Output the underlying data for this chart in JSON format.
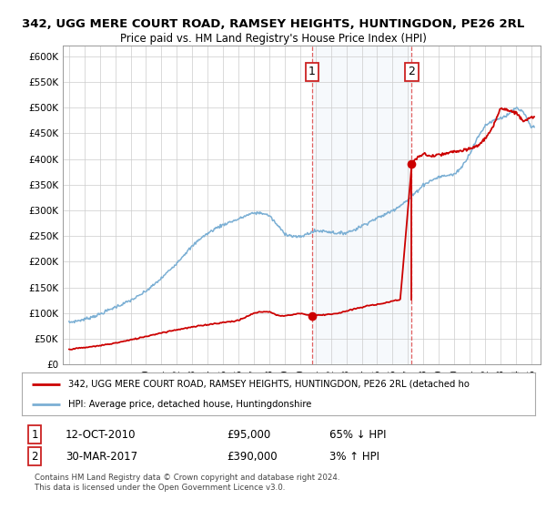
{
  "title1": "342, UGG MERE COURT ROAD, RAMSEY HEIGHTS, HUNTINGDON, PE26 2RL",
  "title2": "Price paid vs. HM Land Registry's House Price Index (HPI)",
  "ylim": [
    0,
    620000
  ],
  "yticks": [
    0,
    50000,
    100000,
    150000,
    200000,
    250000,
    300000,
    350000,
    400000,
    450000,
    500000,
    550000,
    600000
  ],
  "ytick_labels": [
    "£0",
    "£50K",
    "£100K",
    "£150K",
    "£200K",
    "£250K",
    "£300K",
    "£350K",
    "£400K",
    "£450K",
    "£500K",
    "£550K",
    "£600K"
  ],
  "sale1_date": 2010.78,
  "sale1_price": 95000,
  "sale2_date": 2017.24,
  "sale2_price": 390000,
  "legend_red_label": "342, UGG MERE COURT ROAD, RAMSEY HEIGHTS, HUNTINGDON, PE26 2RL (detached ho",
  "legend_blue_label": "HPI: Average price, detached house, Huntingdonshire",
  "footer": "Contains HM Land Registry data © Crown copyright and database right 2024.\nThis data is licensed under the Open Government Licence v3.0.",
  "hpi_color": "#7bafd4",
  "price_color": "#cc0000",
  "shade_color": "#dce8f5",
  "bg_color": "#ffffff",
  "grid_color": "#cccccc",
  "hpi_kp_years": [
    1995.0,
    1995.5,
    1996.0,
    1996.5,
    1997.0,
    1997.5,
    1998.0,
    1998.5,
    1999.0,
    1999.5,
    2000.0,
    2000.5,
    2001.0,
    2001.5,
    2002.0,
    2002.5,
    2003.0,
    2003.5,
    2004.0,
    2004.5,
    2005.0,
    2005.5,
    2006.0,
    2006.5,
    2007.0,
    2007.5,
    2008.0,
    2008.5,
    2009.0,
    2009.5,
    2010.0,
    2010.5,
    2011.0,
    2011.5,
    2012.0,
    2012.5,
    2013.0,
    2013.5,
    2014.0,
    2014.5,
    2015.0,
    2015.5,
    2016.0,
    2016.5,
    2017.0,
    2017.5,
    2018.0,
    2018.5,
    2019.0,
    2019.5,
    2020.0,
    2020.5,
    2021.0,
    2021.5,
    2022.0,
    2022.5,
    2023.0,
    2023.5,
    2024.0,
    2024.5,
    2025.0
  ],
  "hpi_kp_vals": [
    82000,
    85000,
    88000,
    93000,
    98000,
    105000,
    112000,
    118000,
    125000,
    133000,
    143000,
    155000,
    168000,
    183000,
    198000,
    215000,
    230000,
    245000,
    255000,
    265000,
    272000,
    278000,
    283000,
    290000,
    295000,
    295000,
    290000,
    272000,
    255000,
    250000,
    248000,
    255000,
    260000,
    260000,
    258000,
    255000,
    257000,
    262000,
    270000,
    278000,
    285000,
    292000,
    300000,
    310000,
    320000,
    335000,
    350000,
    358000,
    365000,
    368000,
    370000,
    385000,
    410000,
    440000,
    465000,
    475000,
    480000,
    485000,
    500000,
    490000,
    462000
  ],
  "red_kp_years": [
    1995.0,
    1996.0,
    1997.0,
    1998.0,
    1999.0,
    2000.0,
    2001.0,
    2002.0,
    2003.0,
    2004.0,
    2005.0,
    2006.0,
    2007.0,
    2007.5,
    2008.0,
    2008.5,
    2009.0,
    2009.5,
    2010.0,
    2010.78,
    2011.5,
    2012.5,
    2013.5,
    2014.5,
    2015.5,
    2016.5,
    2017.24,
    2017.5,
    2018.0,
    2018.5,
    2019.0,
    2019.5,
    2020.0,
    2020.5,
    2021.0,
    2021.5,
    2022.0,
    2022.5,
    2023.0,
    2023.5,
    2024.0,
    2024.5,
    2025.0
  ],
  "red_kp_vals": [
    30000,
    33000,
    37000,
    42000,
    48000,
    55000,
    62000,
    68000,
    73000,
    78000,
    82000,
    86000,
    100000,
    103000,
    103000,
    96000,
    95000,
    97000,
    100000,
    95000,
    97000,
    100000,
    108000,
    115000,
    120000,
    127000,
    390000,
    400000,
    410000,
    405000,
    408000,
    410000,
    415000,
    415000,
    420000,
    425000,
    440000,
    460000,
    500000,
    495000,
    490000,
    475000,
    480000
  ]
}
